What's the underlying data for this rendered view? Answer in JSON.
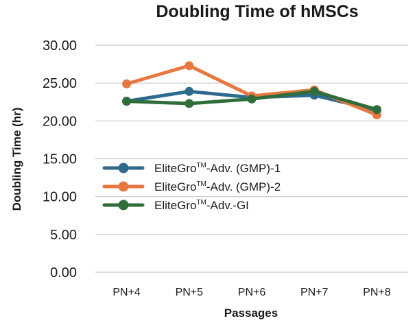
{
  "chart_data": {
    "type": "line",
    "title": "Doubling Time of hMSCs",
    "xlabel": "Passages",
    "ylabel": "Doubling Time (hr)",
    "categories": [
      "PN+4",
      "PN+5",
      "PN+6",
      "PN+7",
      "PN+8"
    ],
    "ylim": [
      0,
      30
    ],
    "yticks": [
      "0.00",
      "5.00",
      "10.00",
      "15.00",
      "20.00",
      "25.00",
      "30.00"
    ],
    "grid": true,
    "legend_position": "center-left",
    "series": [
      {
        "name_main": "EliteGro",
        "name_sup": "TM",
        "name_rest": "-Adv. (GMP)-1",
        "color": "#2e6a8e",
        "values": [
          22.6,
          23.9,
          23.1,
          23.4,
          21.4
        ]
      },
      {
        "name_main": "EliteGro",
        "name_sup": "TM",
        "name_rest": "-Adv. (GMP)-2",
        "color": "#e8773f",
        "values": [
          24.9,
          27.3,
          23.3,
          24.1,
          20.8
        ]
      },
      {
        "name_main": "EliteGro",
        "name_sup": "TM",
        "name_rest": "-Adv.-GI",
        "color": "#2f6e3b",
        "values": [
          22.6,
          22.3,
          22.9,
          23.9,
          21.5
        ]
      }
    ]
  }
}
